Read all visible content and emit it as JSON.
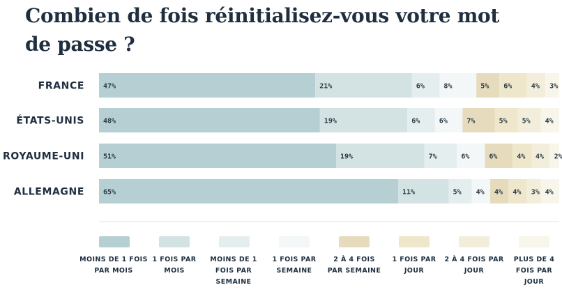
{
  "chart_data": {
    "type": "bar",
    "stacked": true,
    "orientation": "horizontal",
    "title": "Combien de fois réinitialisez-vous votre mot de passe ?",
    "title_lines": [
      "Combien de fois réinitialisez-vous votre mot",
      "de passe ?"
    ],
    "categories": [
      "FRANCE",
      "ÉTATS-UNIS",
      "ROYAUME-UNI",
      "ALLEMAGNE"
    ],
    "series": [
      {
        "name": "MOINS DE 1 FOIS PAR MOIS",
        "label_lines": [
          "MOINS DE 1 FOIS",
          "PAR MOIS"
        ],
        "color": "#b5cfd2",
        "values": [
          47,
          48,
          51,
          65
        ]
      },
      {
        "name": "1 FOIS PAR MOIS",
        "label_lines": [
          "1 FOIS PAR",
          "MOIS"
        ],
        "color": "#d3e3e4",
        "values": [
          21,
          19,
          19,
          11
        ]
      },
      {
        "name": "MOINS DE 1 FOIS PAR SEMAINE",
        "label_lines": [
          "MOINS DE 1",
          "FOIS PAR",
          "SEMAINE"
        ],
        "color": "#e4eeee",
        "values": [
          6,
          6,
          7,
          5
        ]
      },
      {
        "name": "1 FOIS PAR SEMAINE",
        "label_lines": [
          "1 FOIS PAR",
          "SEMAINE"
        ],
        "color": "#f3f7f7",
        "values": [
          8,
          6,
          6,
          4
        ]
      },
      {
        "name": "2 À 4 FOIS PAR SEMAINE",
        "label_lines": [
          "2 À 4 FOIS",
          "PAR SEMAINE"
        ],
        "color": "#e6dcbd",
        "values": [
          5,
          7,
          6,
          4
        ]
      },
      {
        "name": "1 FOIS PAR JOUR",
        "label_lines": [
          "1 FOIS PAR",
          "JOUR"
        ],
        "color": "#efe7cc",
        "values": [
          6,
          5,
          4,
          4
        ]
      },
      {
        "name": "2 À 4 FOIS PAR JOUR",
        "label_lines": [
          "2 À 4 FOIS PAR",
          "JOUR"
        ],
        "color": "#f3eedb",
        "values": [
          4,
          5,
          4,
          3
        ]
      },
      {
        "name": "PLUS DE 4 FOIS PAR JOUR",
        "label_lines": [
          "PLUS DE 4",
          "FOIS PAR",
          "JOUR"
        ],
        "color": "#f8f5ea",
        "values": [
          3,
          4,
          2,
          4
        ]
      }
    ],
    "value_suffix": "%",
    "legend_position": "bottom",
    "grid": false
  }
}
